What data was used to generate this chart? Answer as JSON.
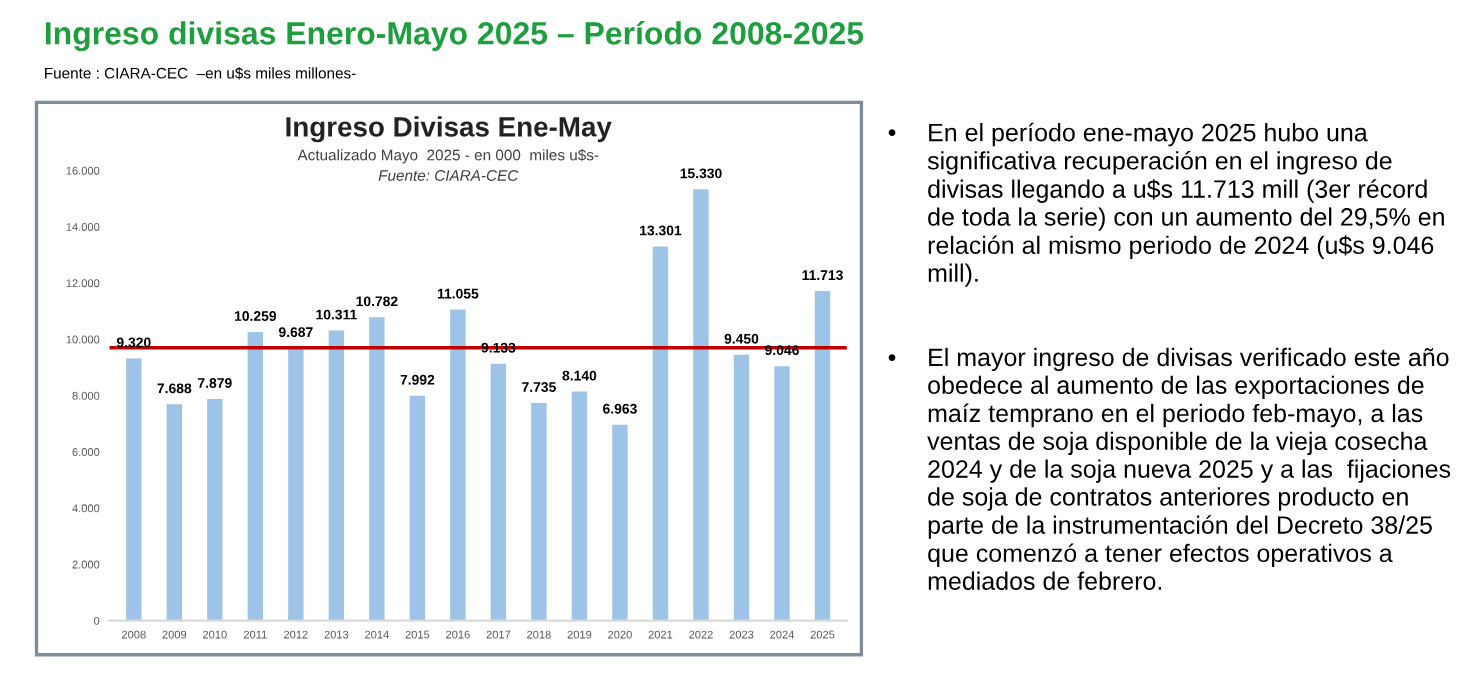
{
  "chart_data": {
    "type": "bar",
    "title": "Ingreso divisas Enero-Mayo 2025 – Período 2008-2025",
    "subtitle": "Fuente : CIARA-CEC  –en u$s miles millones-",
    "categories": [
      "2008",
      "2009",
      "2010",
      "2011",
      "2012",
      "2013",
      "2014",
      "2015",
      "2016",
      "2017",
      "2018",
      "2019",
      "2020",
      "2021",
      "2022",
      "2023",
      "2024",
      "2025"
    ],
    "values": [
      9320,
      7688,
      7879,
      10259,
      9687,
      10311,
      10782,
      7992,
      11055,
      9133,
      7735,
      8140,
      6963,
      13301,
      15330,
      9450,
      9046,
      11713
    ],
    "color": "#9dc3e6",
    "grid": false,
    "value_labels": [
      "9.320",
      "7.688",
      "7.879",
      "10.259",
      "9.687",
      "10.311",
      "10.782",
      "7.992",
      "11.055",
      "9.133",
      "7.735",
      "8.140",
      "6.963",
      "13.301",
      "15.330",
      "9.450",
      "9.046",
      "11.713"
    ],
    "ylim": [
      0,
      16000
    ],
    "yticks": [
      {
        "value": 0,
        "label": "0"
      },
      {
        "value": 2000,
        "label": "2.000"
      },
      {
        "value": 4000,
        "label": "4.000"
      },
      {
        "value": 6000,
        "label": "6.000"
      },
      {
        "value": 8000,
        "label": "8.000"
      },
      {
        "value": 10000,
        "label": "10.000"
      },
      {
        "value": 12000,
        "label": "12.000"
      },
      {
        "value": 14000,
        "label": "14.000"
      },
      {
        "value": 16000,
        "label": "16.000"
      }
    ],
    "ref_lines": [
      {
        "axis": "y",
        "value": 9700,
        "color": "#c00000"
      }
    ],
    "annotations": [
      "Ingreso Divisas Ene-May",
      "Actualizado Mayo  2025 - en 000  miles u$s-",
      "Fuente: CIARA-CEC",
      "• En el período ene-mayo 2025 hubo una significativa recuperación en el ingreso de divisas llegando a u$s 11.713 mill (3er récord de toda la serie) con un aumento del 29,5% en relación al mismo periodo de 2024 (u$s 9.046 mill).",
      "• El mayor ingreso de divisas verificado este año obedece al aumento de las exportaciones de maíz temprano en el periodo feb-mayo, a las ventas de soja disponible de la vieja cosecha 2024 y de la soja nueva 2025 y a las  fijaciones de soja de contratos anteriores producto en parte de la instrumentación del Decreto 38/25 que comenzó a tener efectos operativos a mediados de febrero."
    ]
  }
}
